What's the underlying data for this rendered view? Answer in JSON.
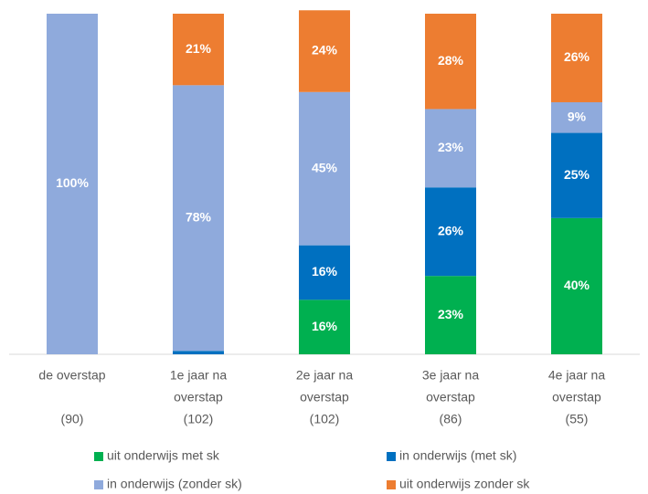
{
  "chart_data": {
    "type": "stacked_bar",
    "categories": [
      [
        "de overstap",
        "(90)"
      ],
      [
        "1e jaar na",
        "overstap",
        "(102)"
      ],
      [
        "2e jaar na",
        "overstap",
        "(102)"
      ],
      [
        "3e jaar na",
        "overstap",
        "(86)"
      ],
      [
        "4e jaar na",
        "overstap",
        "(55)"
      ]
    ],
    "ylim": [
      0,
      100
    ],
    "series": [
      {
        "name": "uit onderwijs met sk",
        "color": "#00b050",
        "values": [
          0,
          0,
          16,
          23,
          40
        ],
        "value_labels": [
          null,
          null,
          "16%",
          "23%",
          "40%"
        ]
      },
      {
        "name": "in onderwijs (met sk)",
        "color": "#0070c0",
        "values": [
          0,
          1,
          16,
          26,
          25
        ],
        "value_labels": [
          null,
          "1%",
          "16%",
          "26%",
          "25%"
        ]
      },
      {
        "name": "in onderwijs (zonder sk)",
        "color": "#8faadc",
        "values": [
          100,
          78,
          45,
          23,
          9
        ],
        "value_labels": [
          "100%",
          "78%",
          "45%",
          "23%",
          "9%"
        ]
      },
      {
        "name": "uit onderwijs zonder sk",
        "color": "#ed7d31",
        "values": [
          0,
          21,
          24,
          28,
          26
        ],
        "value_labels": [
          null,
          "21%",
          "24%",
          "28%",
          "26%"
        ]
      }
    ]
  }
}
